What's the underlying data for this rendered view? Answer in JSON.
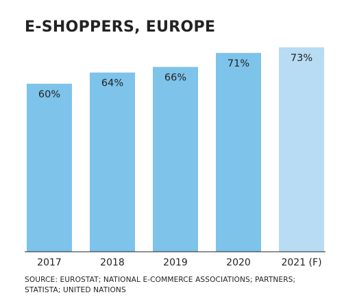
{
  "chart_data": {
    "type": "bar",
    "title": "E-SHOPPERS, EUROPE",
    "categories": [
      "2017",
      "2018",
      "2019",
      "2020",
      "2021 (F)"
    ],
    "values": [
      60,
      64,
      66,
      71,
      73
    ],
    "value_labels": [
      "60%",
      "64%",
      "66%",
      "71%",
      "73%"
    ],
    "unit": "%",
    "ylim": [
      0,
      73
    ],
    "forecast_categories": [
      "2021 (F)"
    ],
    "grid": false,
    "legend": "none",
    "source": "SOURCE: EUROSTAT; NATIONAL E-COMMERCE ASSOCIATIONS; PARTNERS; STATISTA; UNITED NATIONS"
  },
  "colors": {
    "bar": "#7dc3ea",
    "bar_forecast": "#b7dcf3",
    "axis": "#222222",
    "text": "#222222"
  }
}
